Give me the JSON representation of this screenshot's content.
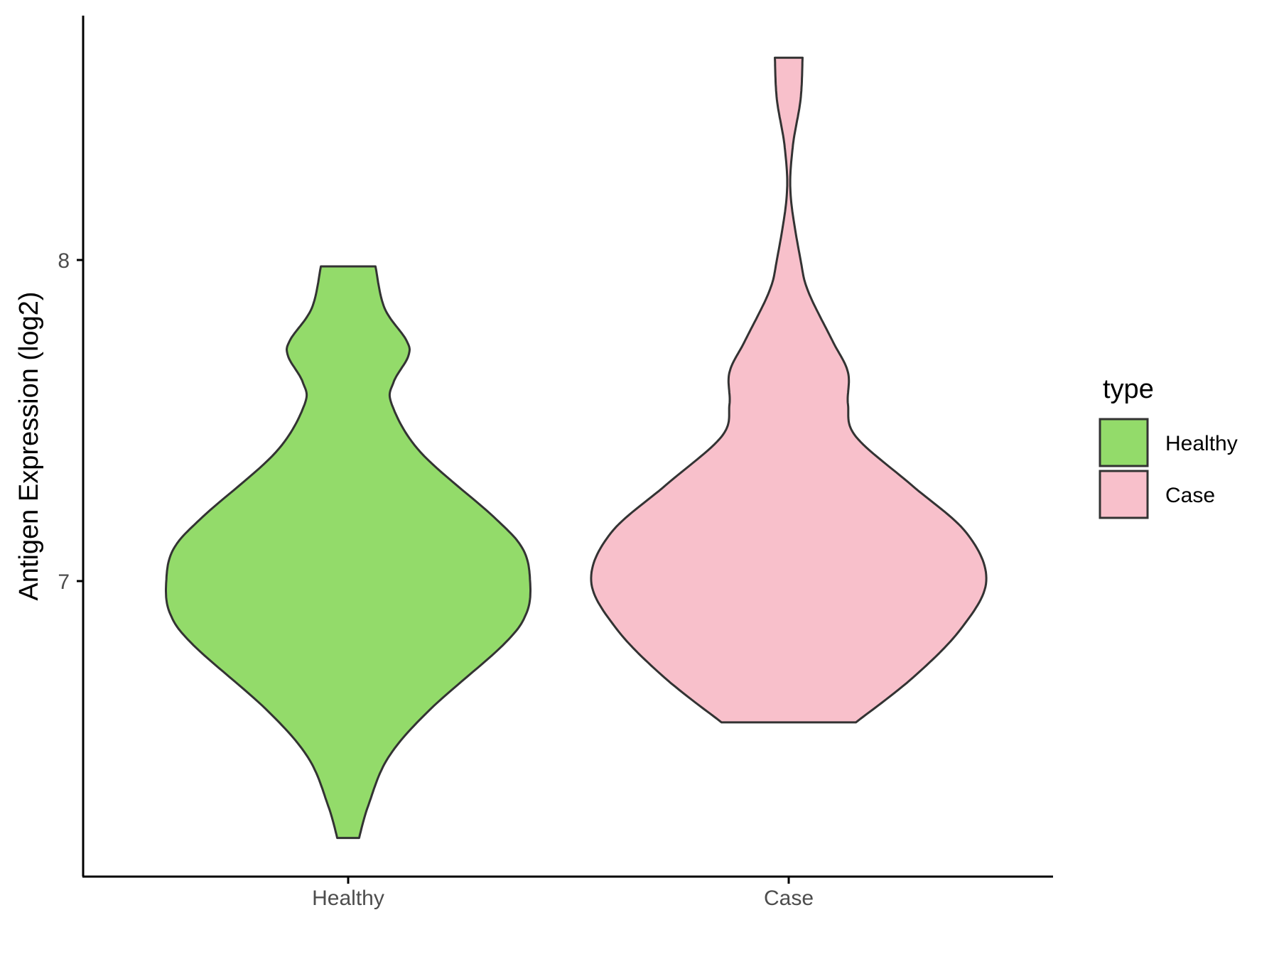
{
  "chart_data": {
    "type": "violin",
    "xlabel": "",
    "ylabel": "Antigen Expression (log2)",
    "categories": [
      "Healthy",
      "Case"
    ],
    "y_ticks": [
      7,
      8
    ],
    "ylim": [
      6.1,
      8.75
    ],
    "grid": false,
    "legend": {
      "title": "type",
      "position": "right",
      "entries": [
        {
          "label": "Healthy",
          "color": "#93DB6A"
        },
        {
          "label": "Case",
          "color": "#F8C0CB"
        }
      ]
    },
    "outline_color": "#333333",
    "series": [
      {
        "category": "Healthy",
        "color": "#93DB6A",
        "min": 6.2,
        "max": 7.98,
        "profile": [
          [
            6.2,
            0.06
          ],
          [
            6.3,
            0.11
          ],
          [
            6.45,
            0.22
          ],
          [
            6.6,
            0.45
          ],
          [
            6.8,
            0.85
          ],
          [
            6.9,
            0.98
          ],
          [
            7.0,
            1.0
          ],
          [
            7.1,
            0.96
          ],
          [
            7.2,
            0.8
          ],
          [
            7.4,
            0.4
          ],
          [
            7.55,
            0.24
          ],
          [
            7.62,
            0.25
          ],
          [
            7.7,
            0.33
          ],
          [
            7.75,
            0.32
          ],
          [
            7.85,
            0.2
          ],
          [
            7.98,
            0.15
          ]
        ]
      },
      {
        "category": "Case",
        "color": "#F8C0CB",
        "min": 6.56,
        "max": 8.63,
        "profile": [
          [
            6.56,
            0.34
          ],
          [
            6.7,
            0.63
          ],
          [
            6.85,
            0.87
          ],
          [
            7.0,
            1.0
          ],
          [
            7.15,
            0.9
          ],
          [
            7.3,
            0.62
          ],
          [
            7.45,
            0.34
          ],
          [
            7.55,
            0.3
          ],
          [
            7.65,
            0.3
          ],
          [
            7.75,
            0.22
          ],
          [
            7.9,
            0.1
          ],
          [
            8.0,
            0.06
          ],
          [
            8.2,
            0.01
          ],
          [
            8.35,
            0.02
          ],
          [
            8.5,
            0.06
          ],
          [
            8.63,
            0.07
          ]
        ]
      }
    ]
  }
}
